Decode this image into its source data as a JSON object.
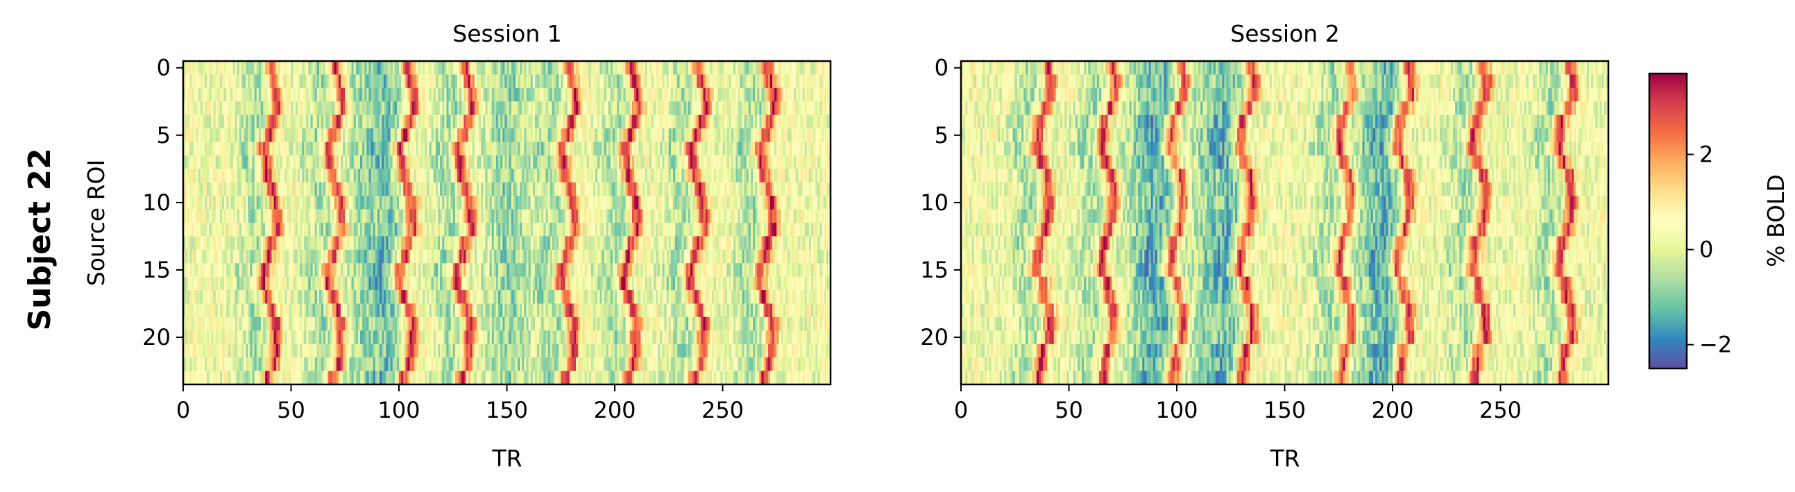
{
  "figure": {
    "row_label": "Subject 22",
    "colorbar_label": "% BOLD",
    "colormap": [
      "#5e4fa2",
      "#3288bd",
      "#66c2a5",
      "#abdda4",
      "#e6f598",
      "#ffffbf",
      "#fee08b",
      "#fdae61",
      "#f46d43",
      "#d53e4f",
      "#9e0142"
    ]
  },
  "chart_data": [
    {
      "type": "heatmap",
      "title": "Session 1",
      "xlabel": "TR",
      "ylabel": "Source ROI",
      "n_rois": 24,
      "n_trs": 300,
      "xlim": [
        0,
        300
      ],
      "ylim": [
        23.5,
        -0.5
      ],
      "xticks": [
        0,
        50,
        100,
        150,
        200,
        250
      ],
      "yticks": [
        0,
        5,
        10,
        15,
        20
      ],
      "peak_centers_TR": [
        40,
        70,
        103,
        130,
        178,
        207,
        238,
        270
      ],
      "description_note": ""
    },
    {
      "type": "heatmap",
      "title": "Session 2",
      "xlabel": "TR",
      "ylabel": "",
      "n_rois": 24,
      "n_trs": 300,
      "xlim": [
        0,
        300
      ],
      "ylim": [
        23.5,
        -0.5
      ],
      "xticks": [
        0,
        50,
        100,
        150,
        200,
        250
      ],
      "yticks": [
        0,
        5,
        10,
        15,
        20
      ],
      "peak_centers_TR": [
        38,
        68,
        100,
        132,
        178,
        205,
        240,
        280
      ]
    }
  ],
  "colorbar": {
    "vmin": -2.5,
    "vmax": 3.7,
    "ticks": [
      -2,
      0,
      2
    ],
    "tick_labels": [
      "−2",
      "0",
      "2"
    ]
  }
}
